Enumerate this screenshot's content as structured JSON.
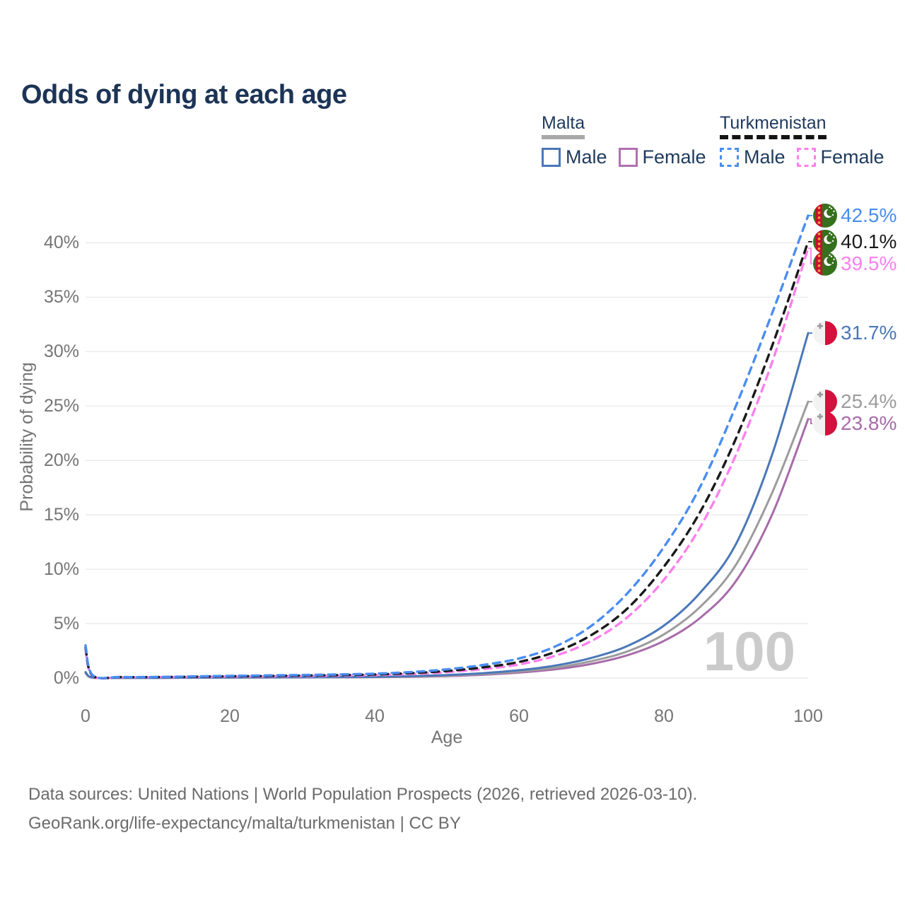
{
  "title": "Odds of dying at each age",
  "legend": {
    "groups": [
      {
        "label": "Malta",
        "line_style": "solid",
        "underline_color": "#a8a8a8",
        "items": [
          {
            "label": "Male",
            "color": "#4a77b8"
          },
          {
            "label": "Female",
            "color": "#b070b2"
          }
        ]
      },
      {
        "label": "Turkmenistan",
        "line_style": "dashed",
        "underline_color": "#141414",
        "items": [
          {
            "label": "Male",
            "color": "#4a8df2"
          },
          {
            "label": "Female",
            "color": "#fc80ee"
          }
        ]
      }
    ]
  },
  "chart_data": {
    "type": "line",
    "title": "Odds of dying at each age",
    "xlabel": "Age",
    "ylabel": "Probability of dying",
    "xlim": [
      0,
      100
    ],
    "ylim_pct": [
      0,
      43.5
    ],
    "x_ticks": [
      "0",
      "20",
      "40",
      "60",
      "80",
      "100"
    ],
    "y_ticks": [
      "0%",
      "5%",
      "10%",
      "15%",
      "20%",
      "25%",
      "30%",
      "35%",
      "40%"
    ],
    "grid": "horizontal",
    "legend_position": "top-right",
    "watermark": "100",
    "ages": [
      0,
      1,
      5,
      10,
      15,
      20,
      25,
      30,
      35,
      40,
      45,
      50,
      55,
      60,
      65,
      70,
      75,
      80,
      85,
      90,
      95,
      100
    ],
    "series": [
      {
        "name": "Turkmenistan Male",
        "country": "turkmenistan",
        "sex": "male",
        "style": "dashed",
        "color": "#4a8df2",
        "end_label": "42.5%",
        "values_pct": [
          3.0,
          0.25,
          0.1,
          0.1,
          0.15,
          0.2,
          0.24,
          0.28,
          0.33,
          0.4,
          0.55,
          0.8,
          1.2,
          1.8,
          2.9,
          4.8,
          7.8,
          12.0,
          17.5,
          25.0,
          33.5,
          42.5
        ]
      },
      {
        "name": "Turkmenistan Both sexes",
        "country": "turkmenistan",
        "sex": "both",
        "style": "dashed",
        "color": "#1a1a1a",
        "end_label": "40.1%",
        "values_pct": [
          2.8,
          0.22,
          0.09,
          0.09,
          0.12,
          0.16,
          0.19,
          0.23,
          0.27,
          0.33,
          0.45,
          0.65,
          0.98,
          1.48,
          2.4,
          3.95,
          6.4,
          10.2,
          15.2,
          22.0,
          30.5,
          40.1
        ]
      },
      {
        "name": "Turkmenistan Female",
        "country": "turkmenistan",
        "sex": "female",
        "style": "dashed",
        "color": "#fc80ee",
        "end_label": "39.5%",
        "values_pct": [
          2.6,
          0.19,
          0.08,
          0.08,
          0.1,
          0.13,
          0.15,
          0.18,
          0.22,
          0.27,
          0.37,
          0.54,
          0.82,
          1.25,
          2.05,
          3.4,
          5.6,
          9.0,
          13.8,
          20.5,
          29.0,
          39.5
        ]
      },
      {
        "name": "Malta Male",
        "country": "malta",
        "sex": "male",
        "style": "solid",
        "color": "#4a77b8",
        "end_label": "31.7%",
        "values_pct": [
          0.55,
          0.04,
          0.02,
          0.02,
          0.04,
          0.06,
          0.07,
          0.08,
          0.09,
          0.11,
          0.17,
          0.28,
          0.45,
          0.72,
          1.15,
          1.85,
          2.95,
          4.8,
          7.8,
          12.3,
          20.5,
          31.7
        ]
      },
      {
        "name": "Malta Both sexes",
        "country": "malta",
        "sex": "both",
        "style": "solid",
        "color": "#9c9c9c",
        "end_label": "25.4%",
        "values_pct": [
          0.5,
          0.035,
          0.015,
          0.02,
          0.035,
          0.05,
          0.06,
          0.07,
          0.08,
          0.1,
          0.14,
          0.23,
          0.37,
          0.6,
          0.95,
          1.55,
          2.45,
          4.0,
          6.5,
          10.4,
          17.0,
          25.4
        ]
      },
      {
        "name": "Malta Female",
        "country": "malta",
        "sex": "female",
        "style": "solid",
        "color": "#a76ba9",
        "end_label": "23.8%",
        "values_pct": [
          0.45,
          0.03,
          0.012,
          0.015,
          0.03,
          0.04,
          0.05,
          0.06,
          0.07,
          0.08,
          0.11,
          0.18,
          0.3,
          0.5,
          0.8,
          1.3,
          2.1,
          3.4,
          5.5,
          8.9,
          15.0,
          23.8
        ]
      }
    ]
  },
  "footer": {
    "line1": "Data sources: United Nations | World Population Prospects (2026, retrieved 2026-03-10).",
    "line2": "GeoRank.org/life-expectancy/malta/turkmenistan | CC BY"
  }
}
